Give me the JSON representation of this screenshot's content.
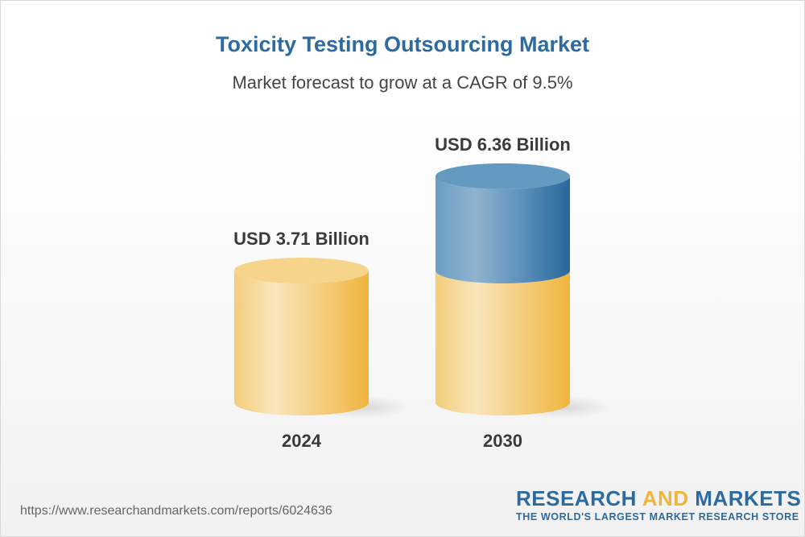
{
  "title": "Toxicity Testing Outsourcing Market",
  "subtitle": "Market forecast to grow at a CAGR of 9.5%",
  "chart_data": {
    "type": "bar",
    "style": "3d-cylinder",
    "categories": [
      "2024",
      "2030"
    ],
    "values": [
      3.71,
      6.36
    ],
    "data_labels": [
      "USD 3.71 Billion",
      "USD 6.36 Billion"
    ],
    "title": "Toxicity Testing Outsourcing Market",
    "subtitle": "Market forecast to grow at a CAGR of 9.5%",
    "xlabel": "",
    "ylabel": "",
    "grid": false,
    "colors": {
      "base": "#f0b63c",
      "growth": "#2c6aa0"
    }
  },
  "footer": {
    "url": "https://www.researchandmarkets.com/reports/6024636",
    "logo_word1": "RESEARCH",
    "logo_word2": "AND",
    "logo_word3": "MARKETS",
    "tagline": "THE WORLD'S LARGEST MARKET RESEARCH STORE"
  }
}
